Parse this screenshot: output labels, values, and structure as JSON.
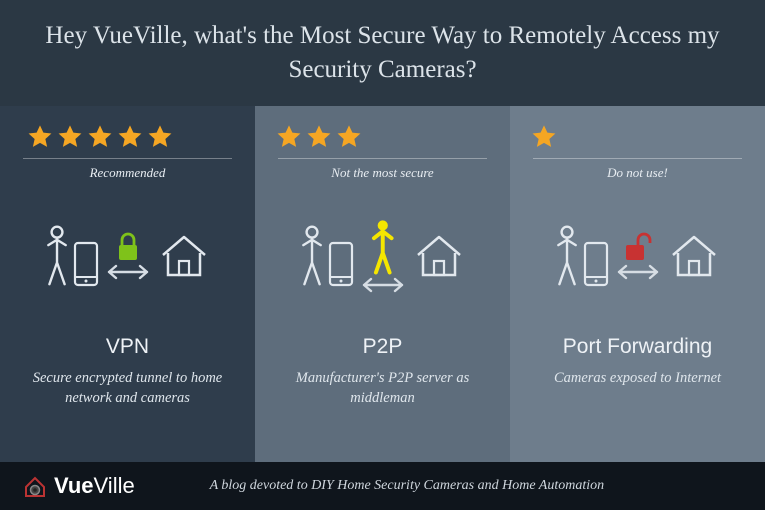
{
  "header": {
    "title": "Hey VueVille, what's the Most Secure Way to Remotely Access my Security Cameras?"
  },
  "columns": [
    {
      "bg": "#2f3d4c",
      "stars": 5,
      "star_color": "#f5a623",
      "tag": "Recommended",
      "name": "VPN",
      "desc": "Secure encrypted tunnel to home network and cameras",
      "mid_type": "lock",
      "mid_color": "#7fc21a"
    },
    {
      "bg": "#5e6d7c",
      "stars": 3,
      "star_color": "#f5a623",
      "tag": "Not the most secure",
      "name": "P2P",
      "desc": "Manufacturer's P2P server as middleman",
      "mid_type": "person",
      "mid_color": "#f5e600"
    },
    {
      "bg": "#6e7d8c",
      "stars": 1,
      "star_color": "#f5a623",
      "tag": "Do not use!",
      "name": "Port Forwarding",
      "desc": "Cameras exposed to Internet",
      "mid_type": "unlock",
      "mid_color": "#c83232"
    }
  ],
  "footer": {
    "brand_bold": "Vue",
    "brand_rest": "Ville",
    "text": "A blog devoted to DIY Home Security Cameras and Home Automation"
  },
  "icons": {
    "outline_color": "#e2e8ee",
    "arrow_color": "#d6dde4"
  }
}
